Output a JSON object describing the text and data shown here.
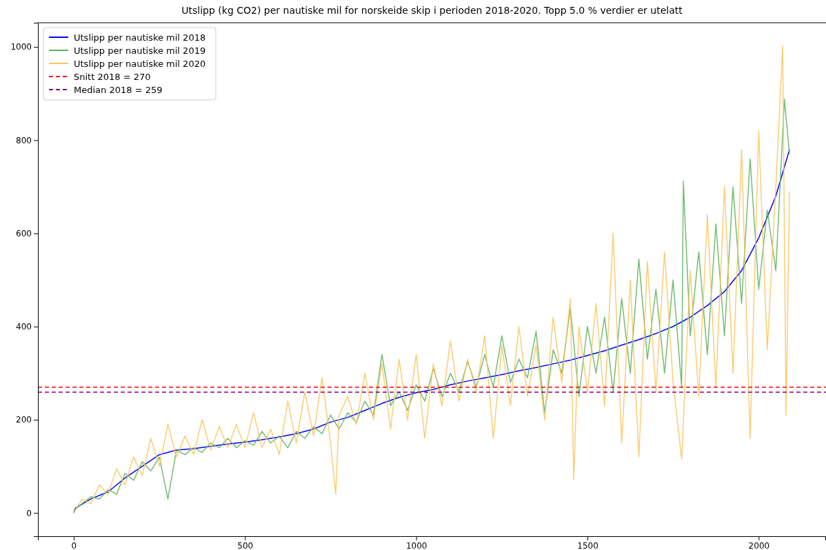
{
  "chart_data": {
    "type": "line",
    "title": "Utslipp (kg CO2) per nautiske mil for norskeide skip i perioden 2018-2020. Topp 5.0 % verdier er utelatt",
    "xlim": [
      -104.5,
      2194.5
    ],
    "xticks": [
      0,
      500,
      1000,
      1500,
      2000
    ],
    "ylim": [
      -50,
      1052
    ],
    "yticks": [
      0,
      200,
      400,
      600,
      800,
      1000
    ],
    "grid": false,
    "legend": "top left",
    "line_style": "solid",
    "marker": "none",
    "series": [
      {
        "name": "Utslipp per nautiske mil 2018",
        "color": "#0000ff",
        "x": [
          0,
          5,
          50,
          100,
          150,
          200,
          250,
          300,
          350,
          400,
          450,
          500,
          550,
          600,
          650,
          700,
          750,
          800,
          850,
          900,
          950,
          1000,
          1050,
          1100,
          1150,
          1200,
          1250,
          1300,
          1350,
          1400,
          1450,
          1500,
          1550,
          1600,
          1650,
          1700,
          1750,
          1800,
          1850,
          1900,
          1950,
          2000,
          2050,
          2090
        ],
        "values": [
          0,
          10,
          30,
          45,
          75,
          100,
          125,
          135,
          138,
          143,
          148,
          152,
          157,
          163,
          170,
          180,
          195,
          205,
          220,
          235,
          248,
          258,
          265,
          275,
          283,
          290,
          297,
          305,
          312,
          320,
          328,
          338,
          348,
          360,
          372,
          385,
          400,
          420,
          445,
          475,
          520,
          590,
          680,
          780
        ]
      },
      {
        "name": "Utslipp per nautiske mil 2019",
        "color": "#5cb25c",
        "x": [
          0,
          25,
          50,
          75,
          100,
          125,
          150,
          175,
          200,
          225,
          250,
          275,
          300,
          325,
          350,
          375,
          400,
          425,
          450,
          475,
          500,
          525,
          550,
          575,
          600,
          625,
          650,
          675,
          700,
          725,
          750,
          775,
          800,
          825,
          850,
          875,
          900,
          925,
          950,
          975,
          1000,
          1025,
          1050,
          1075,
          1100,
          1125,
          1150,
          1175,
          1200,
          1225,
          1250,
          1275,
          1300,
          1325,
          1350,
          1375,
          1400,
          1425,
          1450,
          1475,
          1500,
          1525,
          1550,
          1575,
          1600,
          1625,
          1650,
          1675,
          1700,
          1725,
          1750,
          1775,
          1780,
          1800,
          1825,
          1850,
          1875,
          1900,
          1925,
          1950,
          1975,
          2000,
          2025,
          2050,
          2075,
          2090
        ],
        "values": [
          5,
          20,
          35,
          30,
          50,
          40,
          85,
          70,
          110,
          90,
          120,
          30,
          135,
          125,
          140,
          130,
          150,
          140,
          160,
          140,
          155,
          145,
          175,
          150,
          165,
          140,
          175,
          160,
          185,
          170,
          210,
          180,
          215,
          195,
          240,
          210,
          340,
          230,
          260,
          220,
          275,
          240,
          310,
          250,
          300,
          260,
          325,
          270,
          340,
          270,
          380,
          280,
          330,
          290,
          390,
          215,
          350,
          300,
          440,
          250,
          400,
          300,
          420,
          260,
          460,
          300,
          545,
          330,
          480,
          300,
          500,
          270,
          712,
          380,
          560,
          340,
          620,
          380,
          700,
          450,
          760,
          480,
          650,
          520,
          888,
          770
        ]
      },
      {
        "name": "Utslipp per nautiske mil 2020",
        "color": "#fbc45e",
        "x": [
          0,
          25,
          50,
          75,
          100,
          125,
          150,
          175,
          200,
          225,
          250,
          275,
          300,
          325,
          350,
          375,
          400,
          425,
          450,
          475,
          500,
          525,
          550,
          575,
          600,
          625,
          650,
          675,
          700,
          725,
          750,
          765,
          775,
          800,
          825,
          850,
          875,
          900,
          925,
          950,
          975,
          1000,
          1025,
          1050,
          1075,
          1100,
          1125,
          1150,
          1175,
          1200,
          1225,
          1250,
          1275,
          1300,
          1325,
          1350,
          1375,
          1400,
          1425,
          1450,
          1460,
          1475,
          1500,
          1525,
          1550,
          1575,
          1600,
          1625,
          1650,
          1675,
          1700,
          1725,
          1750,
          1775,
          1800,
          1825,
          1850,
          1875,
          1900,
          1925,
          1950,
          1975,
          2000,
          2025,
          2050,
          2070,
          2080,
          2090
        ],
        "values": [
          0,
          30,
          20,
          60,
          40,
          95,
          60,
          120,
          80,
          160,
          100,
          190,
          120,
          165,
          125,
          200,
          135,
          185,
          140,
          190,
          140,
          215,
          140,
          180,
          125,
          240,
          150,
          260,
          165,
          290,
          150,
          40,
          210,
          250,
          190,
          300,
          200,
          320,
          180,
          330,
          200,
          340,
          160,
          320,
          230,
          370,
          240,
          330,
          260,
          380,
          160,
          360,
          230,
          400,
          250,
          360,
          200,
          420,
          280,
          460,
          72,
          400,
          260,
          450,
          230,
          600,
          150,
          500,
          120,
          540,
          260,
          560,
          280,
          115,
          520,
          250,
          640,
          270,
          700,
          300,
          780,
          160,
          820,
          350,
          700,
          1002,
          210,
          690
        ]
      }
    ],
    "ref_lines": [
      {
        "axis": "y",
        "value": 270,
        "label": "Snitt 2018 = 270",
        "color": "#ff0000",
        "line_style": "dashed"
      },
      {
        "axis": "y",
        "value": 259,
        "label": "Median 2018 = 259",
        "color": "#800080",
        "line_style": "dashed"
      }
    ]
  }
}
